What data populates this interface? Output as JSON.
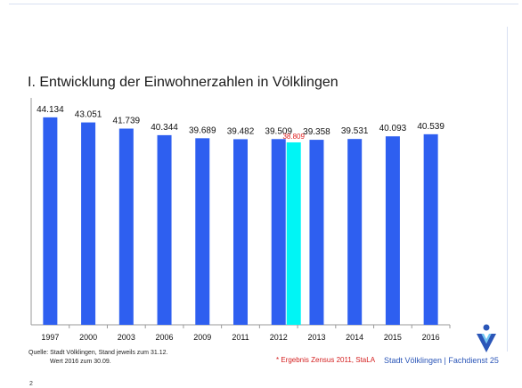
{
  "page": {
    "title": "I. Entwicklung der Einwohnerzahlen in Völklingen",
    "source_line1": "Quelle: Stadt Völklingen, Stand jeweils zum 31.12.",
    "source_line2": "Wert 2016 zum 30.09.",
    "footnote": "* Ergebnis Zensus 2011, StaLA",
    "brand": "Stadt Völklingen | Fachdienst 25",
    "page_number": "2"
  },
  "colors": {
    "bar": "#2e5ff0",
    "highlight_bar": "#00f5f5",
    "highlight_label": "#e02020",
    "axis": "#9a9a9a"
  },
  "chart_data": {
    "type": "bar",
    "title": "I. Entwicklung der Einwohnerzahlen in Völklingen",
    "xlabel": "",
    "ylabel": "",
    "ylim": [
      0,
      46000
    ],
    "grid": false,
    "legend": "none",
    "categories": [
      "1997",
      "2000",
      "2003",
      "2006",
      "2009",
      "2011",
      "2012",
      "2013",
      "2014",
      "2015",
      "2016"
    ],
    "series": [
      {
        "values": [
          44134,
          43051,
          41739,
          40344,
          39689,
          39482,
          39509,
          39358,
          39531,
          40093,
          40539
        ],
        "labels": [
          "44.134",
          "43.051",
          "41.739",
          "40.344",
          "39.689",
          "39.482",
          "39.509",
          "39.358",
          "39.531",
          "40.093",
          "40.539"
        ]
      }
    ],
    "annotations": [
      {
        "category": "2012",
        "value": 38809,
        "label": "38.809",
        "note": "Ergebnis Zensus 2011"
      }
    ]
  }
}
